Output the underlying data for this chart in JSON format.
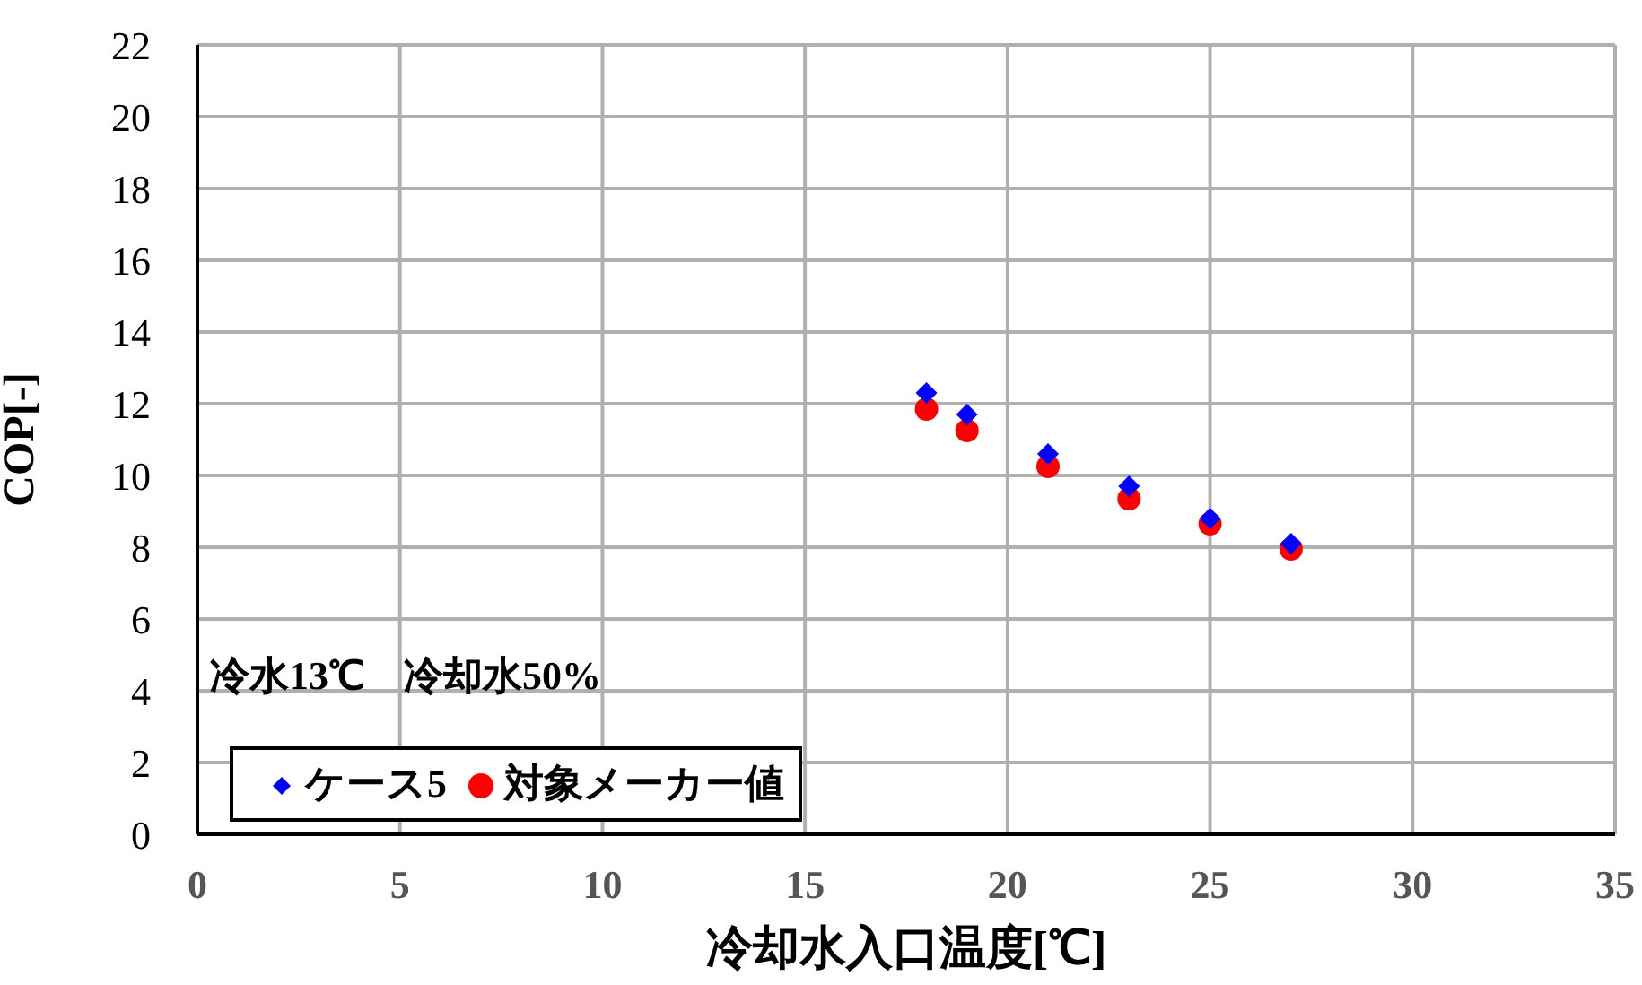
{
  "chart_data": {
    "type": "scatter",
    "xlabel": "冷却水入口温度[℃]",
    "ylabel": "COP[-]",
    "annotations": [
      "冷水13℃　冷却水50%"
    ],
    "x": [
      18,
      19,
      21,
      23,
      25,
      27
    ],
    "series": [
      {
        "name": "ケース5",
        "color": "#0000ff",
        "marker": "diamond",
        "values": [
          12.3,
          11.7,
          10.6,
          9.7,
          8.8,
          8.1
        ]
      },
      {
        "name": "対象メーカー値",
        "color": "#ff0000",
        "marker": "circle",
        "values": [
          11.85,
          11.25,
          10.25,
          9.35,
          8.65,
          7.95
        ]
      }
    ],
    "xlim": [
      0,
      35
    ],
    "xticks": [
      0,
      5,
      10,
      15,
      20,
      25,
      30,
      35
    ],
    "ylim": [
      0,
      22
    ],
    "yticks": [
      0,
      2,
      4,
      6,
      8,
      10,
      12,
      14,
      16,
      18,
      20,
      22
    ],
    "grid": true,
    "legend": "bottom left"
  }
}
